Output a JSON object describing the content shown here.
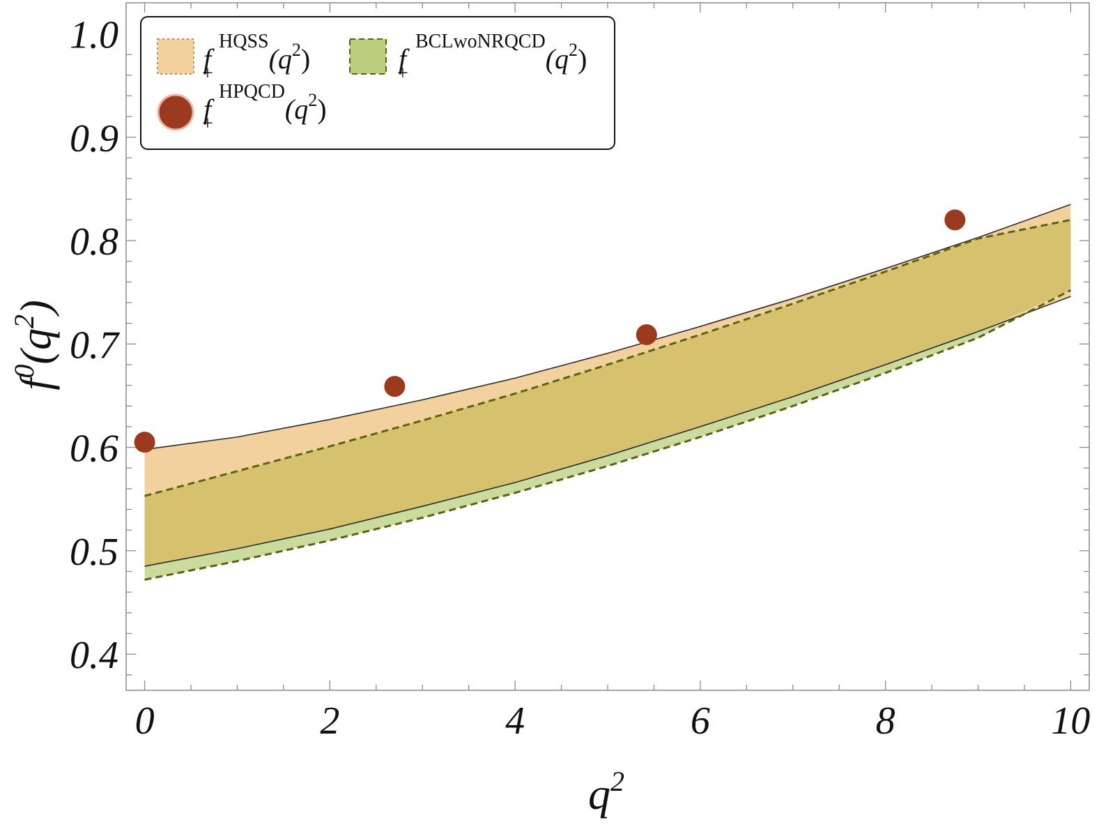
{
  "chart_data": {
    "type": "area",
    "xlabel": "q",
    "xlabel_sup": "2",
    "ylabel": "f",
    "ylabel_sup": "0",
    "ylabel_arg": "(q",
    "ylabel_arg_sup": "2",
    "ylabel_close": ")",
    "xlim": [
      -0.2,
      10.2
    ],
    "ylim": [
      0.365,
      1.03
    ],
    "x_ticks": [
      "0",
      "2",
      "4",
      "6",
      "8",
      "10"
    ],
    "x_tick_values": [
      0,
      2,
      4,
      6,
      8,
      10
    ],
    "y_ticks": [
      "0.4",
      "0.5",
      "0.6",
      "0.7",
      "0.8",
      "0.9",
      "1.0"
    ],
    "y_tick_values": [
      0.4,
      0.5,
      0.6,
      0.7,
      0.8,
      0.9,
      1.0
    ],
    "grid": false,
    "legend_position": "top-left",
    "series": [
      {
        "name": "HQSS",
        "kind": "band",
        "x": [
          0,
          1,
          2,
          3,
          4,
          5,
          6,
          7,
          8,
          9,
          10
        ],
        "upper": [
          0.598,
          0.61,
          0.627,
          0.646,
          0.667,
          0.691,
          0.717,
          0.744,
          0.773,
          0.803,
          0.835
        ],
        "lower": [
          0.485,
          0.502,
          0.521,
          0.543,
          0.566,
          0.592,
          0.62,
          0.649,
          0.68,
          0.712,
          0.746
        ],
        "fill": "#f2d19e",
        "stroke": "#2b2b2b"
      },
      {
        "name": "BCLwoNRQCD",
        "kind": "band",
        "x": [
          0,
          1,
          2,
          3,
          4,
          5,
          6,
          7,
          8,
          9,
          10
        ],
        "upper": [
          0.553,
          0.577,
          0.601,
          0.626,
          0.652,
          0.68,
          0.709,
          0.739,
          0.77,
          0.802,
          0.82
        ],
        "lower": [
          0.472,
          0.49,
          0.51,
          0.532,
          0.556,
          0.582,
          0.61,
          0.64,
          0.672,
          0.706,
          0.752
        ],
        "fill": "#b9cf7e",
        "stroke": "#5a6410"
      },
      {
        "name": "HPQCD",
        "kind": "scatter",
        "x": [
          0.0,
          2.7,
          5.42,
          8.75
        ],
        "y": [
          0.605,
          0.659,
          0.709,
          0.82
        ],
        "color": "#9b3a1f"
      }
    ]
  },
  "legend": {
    "base": "f",
    "sub": "+",
    "arg": "(q",
    "arg_sup": "2",
    "close": ")",
    "items": [
      {
        "sup": "HQSS"
      },
      {
        "sup": "BCLwoNRQCD"
      },
      {
        "sup": "HPQCD"
      }
    ]
  },
  "colors": {
    "overlap": "#d6c26e",
    "frame": "#8a8a8a"
  }
}
